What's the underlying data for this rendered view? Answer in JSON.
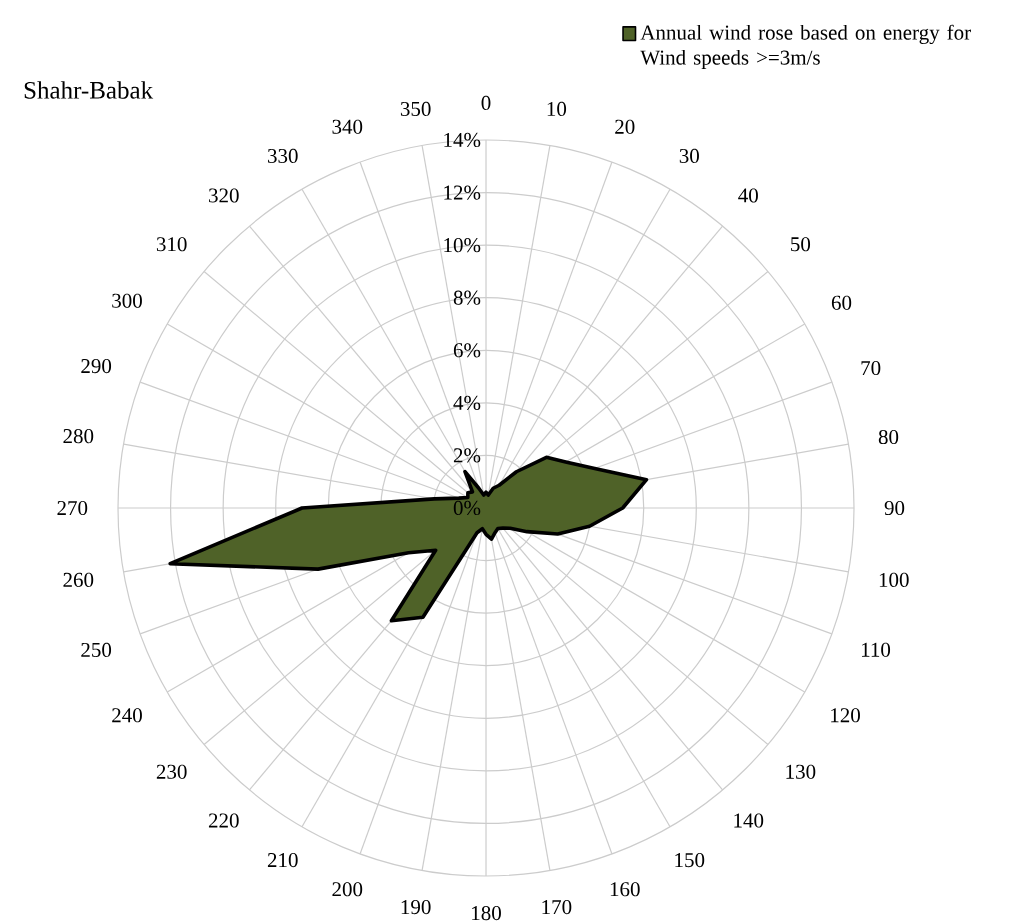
{
  "chart_data": {
    "type": "radar",
    "title": "Shahr-Babak",
    "categories": [
      "0",
      "10",
      "20",
      "30",
      "40",
      "50",
      "60",
      "70",
      "80",
      "90",
      "100",
      "110",
      "120",
      "130",
      "140",
      "150",
      "160",
      "170",
      "180",
      "190",
      "200",
      "210",
      "220",
      "230",
      "240",
      "250",
      "260",
      "270",
      "280",
      "290",
      "300",
      "310",
      "320",
      "330",
      "340",
      "350"
    ],
    "series": [
      {
        "name": "Annual wind rose based on energy for Wind speeds >=3m/s",
        "color": "#4f6228",
        "values": [
          0.6,
          0.5,
          0.8,
          1.0,
          1.8,
          3.0,
          3.5,
          4.4,
          6.2,
          5.2,
          4.0,
          2.9,
          1.8,
          1.2,
          1.0,
          0.9,
          1.0,
          1.2,
          1.0,
          0.8,
          1.0,
          4.8,
          5.6,
          2.5,
          3.4,
          6.8,
          12.2,
          7.0,
          2.0,
          1.1,
          0.8,
          0.9,
          0.8,
          1.6,
          0.8,
          0.5
        ]
      }
    ],
    "ylim": [
      0,
      14
    ],
    "yticks": [
      {
        "value": 0,
        "label": "0%"
      },
      {
        "value": 2,
        "label": "2%"
      },
      {
        "value": 4,
        "label": "4%"
      },
      {
        "value": 6,
        "label": "6%"
      },
      {
        "value": 8,
        "label": "8%"
      },
      {
        "value": 10,
        "label": "10%"
      },
      {
        "value": 12,
        "label": "12%"
      },
      {
        "value": 14,
        "label": "14%"
      }
    ],
    "grid": true,
    "legend": "top right",
    "marker": "none"
  }
}
